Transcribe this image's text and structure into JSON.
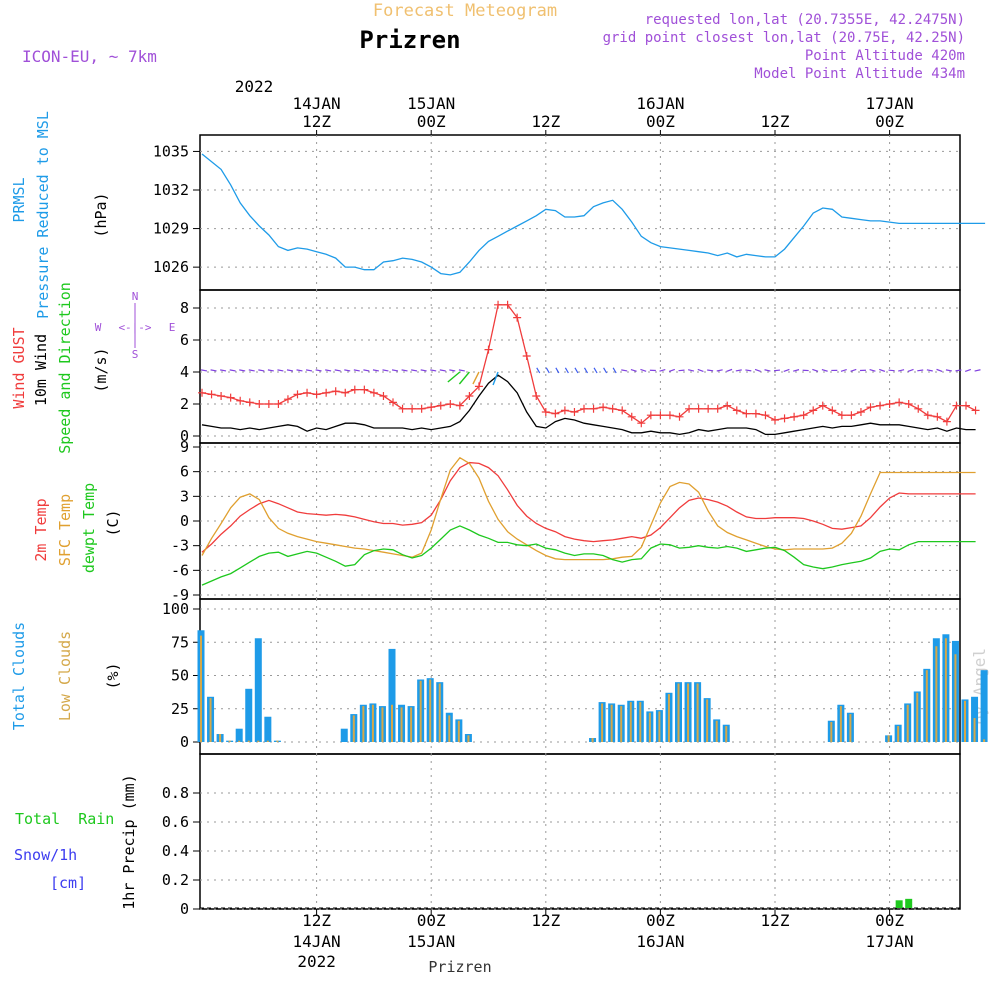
{
  "header": {
    "forecast_title": "Forecast Meteogram",
    "location": "Prizren",
    "model": "ICON-EU, ~ 7km",
    "requested_point": "requested lon,lat (20.7355E, 42.2475N)",
    "grid_point": "grid point closest lon,lat (20.75E, 42.25N)",
    "point_altitude": "Point Altitude 420m",
    "model_altitude": "Model Point Altitude 434m",
    "credit": "by Angel",
    "footer_location": "Prizren"
  },
  "colors": {
    "pressure": "#1e9be8",
    "gust": "#f03c3c",
    "wind": "#000000",
    "direction": "#1ec81e",
    "temp": "#f03c3c",
    "sfc_temp": "#e0a030",
    "dewpt": "#1ec81e",
    "total_clouds": "#1e9be8",
    "low_clouds": "#d4a84a",
    "rain": "#1ec81e",
    "snow": "#3c3cf0",
    "header_purple": "#a050d8",
    "header_orange": "#f0c070"
  },
  "time_axis": {
    "top_year": "2022",
    "top_ticks": [
      {
        "h": 12,
        "l1": "14JAN",
        "l2": "12Z"
      },
      {
        "h": 24,
        "l1": "15JAN",
        "l2": "00Z"
      },
      {
        "h": 36,
        "l1": "",
        "l2": "12Z"
      },
      {
        "h": 48,
        "l1": "16JAN",
        "l2": "00Z"
      },
      {
        "h": 60,
        "l1": "",
        "l2": "12Z"
      },
      {
        "h": 72,
        "l1": "17JAN",
        "l2": "00Z"
      }
    ],
    "bottom_ticks": [
      {
        "h": 12,
        "l1": "12Z",
        "l2": "14JAN",
        "l3": "2022"
      },
      {
        "h": 24,
        "l1": "00Z",
        "l2": "15JAN",
        "l3": ""
      },
      {
        "h": 36,
        "l1": "12Z",
        "l2": "",
        "l3": ""
      },
      {
        "h": 48,
        "l1": "00Z",
        "l2": "16JAN",
        "l3": ""
      },
      {
        "h": 60,
        "l1": "12Z",
        "l2": "",
        "l3": ""
      },
      {
        "h": 72,
        "l1": "00Z",
        "l2": "17JAN",
        "l3": ""
      }
    ]
  },
  "panels": {
    "pressure": {
      "labels": [
        "PRMSL",
        "Pressure Reduced to MSL"
      ],
      "unit": "(hPa)",
      "ticks": [
        "1035",
        "1032",
        "1029",
        "1026"
      ]
    },
    "wind": {
      "labels": [
        "Wind GUST",
        "10m Wind",
        "Speed and Direction"
      ],
      "unit": "(m/s)",
      "ticks": [
        "8",
        "6",
        "4",
        "2",
        "0"
      ],
      "compass": {
        "n": "N",
        "s": "S",
        "w": "W",
        "e": "E",
        "arrow": "<-|->"
      }
    },
    "temperature": {
      "labels": [
        "2m Temp",
        "SFC Temp",
        "dewpt Temp"
      ],
      "unit": "(C)",
      "ticks": [
        "9",
        "6",
        "3",
        "0",
        "-3",
        "-6",
        "-9"
      ]
    },
    "clouds": {
      "labels": [
        "Total Clouds",
        "Low Clouds"
      ],
      "unit": "(%)",
      "ticks": [
        "100",
        "75",
        "50",
        "25",
        "0"
      ]
    },
    "precip": {
      "labels": [
        "Total  Rain",
        "Snow/1h",
        "[cm]"
      ],
      "ylabel": "1hr Precip (mm)",
      "ticks": [
        "0.8",
        "0.6",
        "0.4",
        "0.2",
        "0"
      ]
    }
  },
  "chart_data": [
    {
      "type": "line",
      "title": "PRMSL Pressure Reduced to MSL",
      "ylabel": "(hPa)",
      "ylim": [
        1025,
        1035.5
      ],
      "x_unit": "hours from 14JAN 07Z",
      "series": [
        {
          "name": "PRMSL",
          "x": [
            0,
            2,
            3,
            4,
            5,
            6,
            7,
            8,
            9,
            10,
            11,
            12,
            13,
            14,
            15,
            16,
            17,
            18,
            19,
            20,
            21,
            22,
            23,
            24,
            25,
            26,
            27,
            28,
            29,
            30,
            31,
            32,
            33,
            34,
            35,
            36,
            37,
            38,
            39,
            40,
            41,
            42,
            43,
            44,
            45,
            46,
            47,
            48,
            49,
            50,
            51,
            52,
            53,
            54,
            55,
            56,
            57,
            58,
            59,
            60,
            61,
            62,
            63,
            64,
            65,
            66,
            67,
            68,
            69,
            70,
            71,
            72,
            73,
            74,
            75,
            76,
            77,
            78,
            79,
            80,
            81,
            82
          ],
          "values": [
            1034.8,
            1033.6,
            1032.4,
            1031.0,
            1030.0,
            1029.2,
            1028.5,
            1027.6,
            1027.3,
            1027.5,
            1027.4,
            1027.2,
            1027.0,
            1026.7,
            1026.0,
            1026.0,
            1025.8,
            1025.8,
            1026.4,
            1026.5,
            1026.7,
            1026.6,
            1026.4,
            1026.0,
            1025.5,
            1025.4,
            1025.6,
            1026.4,
            1027.3,
            1028.0,
            1028.4,
            1028.8,
            1029.2,
            1029.6,
            1030.0,
            1030.5,
            1030.4,
            1029.9,
            1029.9,
            1030.0,
            1030.7,
            1031.0,
            1031.2,
            1030.5,
            1029.5,
            1028.4,
            1027.9,
            1027.6,
            1027.5,
            1027.4,
            1027.3,
            1027.2,
            1027.1,
            1026.9,
            1027.1,
            1026.8,
            1027.0,
            1026.9,
            1026.8,
            1026.8,
            1027.4,
            1028.3,
            1029.2,
            1030.2,
            1030.6,
            1030.5,
            1029.9,
            1029.8,
            1029.7,
            1029.6,
            1029.6,
            1029.5,
            1029.4,
            1029.4,
            1029.4,
            1029.4,
            1029.4,
            1029.4,
            1029.4,
            1029.4,
            1029.4,
            1029.4
          ]
        }
      ]
    },
    {
      "type": "line",
      "title": "Wind GUST / 10m Wind Speed and Direction",
      "ylabel": "(m/s)",
      "ylim": [
        0,
        8.5
      ],
      "series": [
        {
          "name": "Wind GUST",
          "values": [
            2.7,
            2.6,
            2.5,
            2.4,
            2.2,
            2.1,
            2.0,
            2.0,
            2.0,
            2.3,
            2.6,
            2.7,
            2.6,
            2.7,
            2.8,
            2.7,
            2.9,
            2.9,
            2.7,
            2.5,
            2.1,
            1.7,
            1.7,
            1.7,
            1.8,
            1.9,
            2.0,
            1.9,
            2.5,
            3.1,
            5.4,
            8.2,
            8.2,
            7.4,
            5.0,
            2.5,
            1.5,
            1.4,
            1.6,
            1.5,
            1.7,
            1.7,
            1.8,
            1.7,
            1.6,
            1.2,
            0.8,
            1.3,
            1.3,
            1.3,
            1.2,
            1.7,
            1.7,
            1.7,
            1.7,
            1.9,
            1.6,
            1.4,
            1.4,
            1.3,
            1.0,
            1.1,
            1.2,
            1.3,
            1.6,
            1.9,
            1.6,
            1.3,
            1.3,
            1.5,
            1.8,
            1.9,
            2.0,
            2.1,
            2.0,
            1.7,
            1.3,
            1.2,
            0.9,
            1.9,
            1.9,
            1.6
          ]
        },
        {
          "name": "10m Wind",
          "values": [
            0.7,
            0.6,
            0.5,
            0.5,
            0.4,
            0.5,
            0.4,
            0.5,
            0.6,
            0.7,
            0.6,
            0.3,
            0.5,
            0.4,
            0.6,
            0.8,
            0.8,
            0.7,
            0.5,
            0.5,
            0.5,
            0.5,
            0.4,
            0.5,
            0.4,
            0.5,
            0.6,
            0.9,
            1.6,
            2.5,
            3.3,
            3.8,
            3.4,
            2.7,
            1.5,
            0.6,
            0.5,
            0.9,
            1.1,
            1.0,
            0.8,
            0.7,
            0.6,
            0.5,
            0.4,
            0.2,
            0.2,
            0.3,
            0.2,
            0.2,
            0.1,
            0.2,
            0.4,
            0.3,
            0.4,
            0.5,
            0.5,
            0.5,
            0.4,
            0.1,
            0.1,
            0.2,
            0.3,
            0.4,
            0.5,
            0.6,
            0.5,
            0.6,
            0.6,
            0.7,
            0.8,
            0.7,
            0.7,
            0.7,
            0.6,
            0.5,
            0.4,
            0.5,
            0.3,
            0.5,
            0.4,
            0.4
          ]
        }
      ],
      "direction_barbs": "arrows along 4 m/s line, mostly westward, turning north-eastward after 12Z 15JAN"
    },
    {
      "type": "line",
      "title": "2m Temp / SFC Temp / dewpt Temp",
      "ylabel": "(C)",
      "ylim": [
        -9,
        9
      ],
      "series": [
        {
          "name": "2m Temp",
          "values": [
            -3.8,
            -2.8,
            -1.6,
            -0.6,
            0.6,
            1.4,
            2.1,
            2.5,
            2.1,
            1.6,
            1.1,
            0.9,
            0.8,
            0.7,
            0.8,
            0.7,
            0.5,
            0.2,
            -0.1,
            -0.3,
            -0.3,
            -0.5,
            -0.4,
            -0.2,
            0.7,
            2.6,
            4.9,
            6.5,
            7.1,
            7.0,
            6.5,
            5.5,
            3.8,
            1.9,
            0.6,
            -0.3,
            -0.9,
            -1.3,
            -1.9,
            -2.2,
            -2.4,
            -2.5,
            -2.4,
            -2.3,
            -2.1,
            -1.9,
            -2.1,
            -1.7,
            -0.8,
            0.4,
            1.6,
            2.5,
            2.8,
            2.6,
            2.3,
            1.8,
            1.1,
            0.5,
            0.3,
            0.3,
            0.4,
            0.4,
            0.4,
            0.3,
            0.0,
            -0.4,
            -0.9,
            -1.0,
            -0.8,
            -0.6,
            0.4,
            1.7,
            2.8,
            3.4,
            3.3,
            3.3,
            3.3,
            3.3,
            3.3,
            3.3,
            3.3,
            3.3
          ]
        },
        {
          "name": "SFC Temp",
          "values": [
            -4.2,
            -2.1,
            -0.3,
            1.6,
            2.9,
            3.3,
            2.6,
            0.4,
            -0.9,
            -1.5,
            -1.9,
            -2.2,
            -2.5,
            -2.7,
            -2.9,
            -3.1,
            -3.3,
            -3.4,
            -3.6,
            -3.8,
            -4.0,
            -4.2,
            -4.4,
            -3.9,
            -1.1,
            2.7,
            6.2,
            7.7,
            7.0,
            5.2,
            2.4,
            0.2,
            -1.3,
            -2.2,
            -2.9,
            -3.6,
            -4.2,
            -4.6,
            -4.7,
            -4.7,
            -4.7,
            -4.7,
            -4.7,
            -4.6,
            -4.4,
            -4.3,
            -3.2,
            -0.5,
            2.2,
            4.2,
            4.7,
            4.5,
            3.5,
            1.2,
            -0.6,
            -1.4,
            -1.9,
            -2.3,
            -2.7,
            -3.1,
            -3.4,
            -3.5,
            -3.4,
            -3.4,
            -3.4,
            -3.4,
            -3.3,
            -2.7,
            -1.5,
            0.6,
            3.3,
            5.9,
            5.9,
            5.9,
            5.9,
            5.9,
            5.9,
            5.9,
            5.9,
            5.9,
            5.9,
            5.9
          ]
        },
        {
          "name": "dewpt Temp",
          "values": [
            -7.8,
            -7.3,
            -6.8,
            -6.4,
            -5.7,
            -5.0,
            -4.3,
            -3.9,
            -3.8,
            -4.3,
            -4.0,
            -3.7,
            -3.9,
            -4.4,
            -4.9,
            -5.5,
            -5.3,
            -4.1,
            -3.6,
            -3.4,
            -3.5,
            -4.1,
            -4.5,
            -4.2,
            -3.3,
            -2.2,
            -1.1,
            -0.6,
            -1.1,
            -1.7,
            -2.1,
            -2.6,
            -2.6,
            -2.9,
            -3.0,
            -2.8,
            -3.3,
            -3.5,
            -3.9,
            -4.2,
            -4.0,
            -4.0,
            -4.2,
            -4.7,
            -5.0,
            -4.7,
            -4.6,
            -3.3,
            -2.8,
            -2.9,
            -3.3,
            -3.2,
            -3.0,
            -3.2,
            -3.3,
            -3.1,
            -3.3,
            -3.7,
            -3.5,
            -3.3,
            -3.2,
            -3.6,
            -4.4,
            -5.3,
            -5.6,
            -5.8,
            -5.6,
            -5.3,
            -5.1,
            -4.9,
            -4.5,
            -3.7,
            -3.4,
            -3.5,
            -2.9,
            -2.5,
            -2.5,
            -2.5,
            -2.5,
            -2.5,
            -2.5,
            -2.5
          ]
        }
      ]
    },
    {
      "type": "bar",
      "title": "Total Clouds / Low Clouds",
      "ylabel": "(%)",
      "ylim": [
        0,
        100
      ],
      "series": [
        {
          "name": "Total Clouds",
          "values": [
            84,
            34,
            6,
            1,
            10,
            40,
            78,
            19,
            1,
            0,
            0,
            0,
            0,
            0,
            0,
            10,
            21,
            28,
            29,
            27,
            70,
            28,
            27,
            47,
            48,
            45,
            22,
            17,
            6,
            0,
            0,
            0,
            0,
            0,
            0,
            0,
            0,
            0,
            0,
            0,
            0,
            3,
            30,
            29,
            28,
            31,
            31,
            23,
            24,
            37,
            45,
            45,
            45,
            33,
            17,
            13,
            0,
            0,
            0,
            0,
            0,
            0,
            0,
            0,
            0,
            0,
            16,
            28,
            22,
            0,
            0,
            0,
            5,
            13,
            29,
            38,
            55,
            78,
            81,
            76,
            32,
            34,
            54
          ]
        },
        {
          "name": "Low Clouds",
          "values": [
            80,
            33,
            6,
            1,
            1,
            1,
            1,
            1,
            1,
            0,
            0,
            0,
            0,
            0,
            0,
            0,
            20,
            27,
            28,
            26,
            28,
            26,
            26,
            46,
            47,
            44,
            20,
            16,
            5,
            0,
            0,
            0,
            0,
            0,
            0,
            0,
            0,
            0,
            0,
            0,
            0,
            3,
            29,
            28,
            27,
            30,
            30,
            22,
            23,
            36,
            44,
            44,
            44,
            32,
            16,
            12,
            0,
            0,
            0,
            0,
            0,
            0,
            0,
            0,
            0,
            0,
            15,
            27,
            21,
            0,
            0,
            0,
            5,
            12,
            28,
            37,
            54,
            72,
            78,
            66,
            31,
            18,
            2
          ]
        }
      ]
    },
    {
      "type": "bar",
      "title": "Total Rain / Snow/1h",
      "ylabel": "1hr Precip (mm)",
      "ylim": [
        0,
        1.0
      ],
      "series": [
        {
          "name": "Total Rain",
          "hours": [
            73,
            74
          ],
          "values": [
            0.06,
            0.07
          ]
        }
      ]
    }
  ]
}
